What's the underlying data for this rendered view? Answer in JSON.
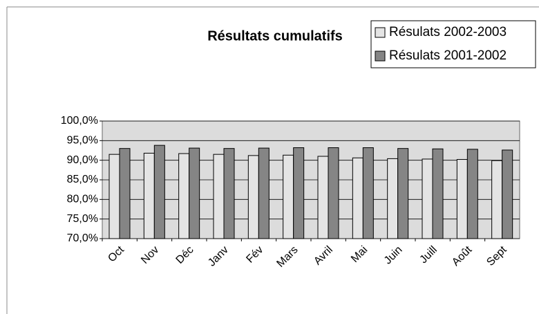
{
  "chart_data": {
    "type": "bar",
    "title": "Résultats cumulatifs",
    "categories": [
      "Oct",
      "Nov",
      "Déc",
      "Janv",
      "Fév",
      "Mars",
      "Avril",
      "Mai",
      "Juin",
      "Juill",
      "Août",
      "Sept"
    ],
    "series": [
      {
        "name": "Résulats 2002-2003",
        "color": "#e4e4e4",
        "values": [
          91.5,
          91.8,
          91.7,
          91.5,
          91.2,
          91.3,
          91.0,
          90.6,
          90.4,
          90.3,
          90.2,
          89.9
        ]
      },
      {
        "name": "Résulats 2001-2002",
        "color": "#858585",
        "values": [
          93.0,
          93.8,
          93.1,
          93.0,
          93.1,
          93.2,
          93.2,
          93.2,
          93.0,
          92.9,
          92.8,
          92.6
        ]
      }
    ],
    "ylim": [
      70,
      100
    ],
    "yticks": [
      {
        "value": 70,
        "label": "70,0%"
      },
      {
        "value": 75,
        "label": "75,0%"
      },
      {
        "value": 80,
        "label": "80,0%"
      },
      {
        "value": 85,
        "label": "85,0%"
      },
      {
        "value": 90,
        "label": "90,0%"
      },
      {
        "value": 95,
        "label": "95,0%"
      },
      {
        "value": 100,
        "label": "100,0%"
      }
    ],
    "grid": true,
    "legend": "top-right"
  }
}
